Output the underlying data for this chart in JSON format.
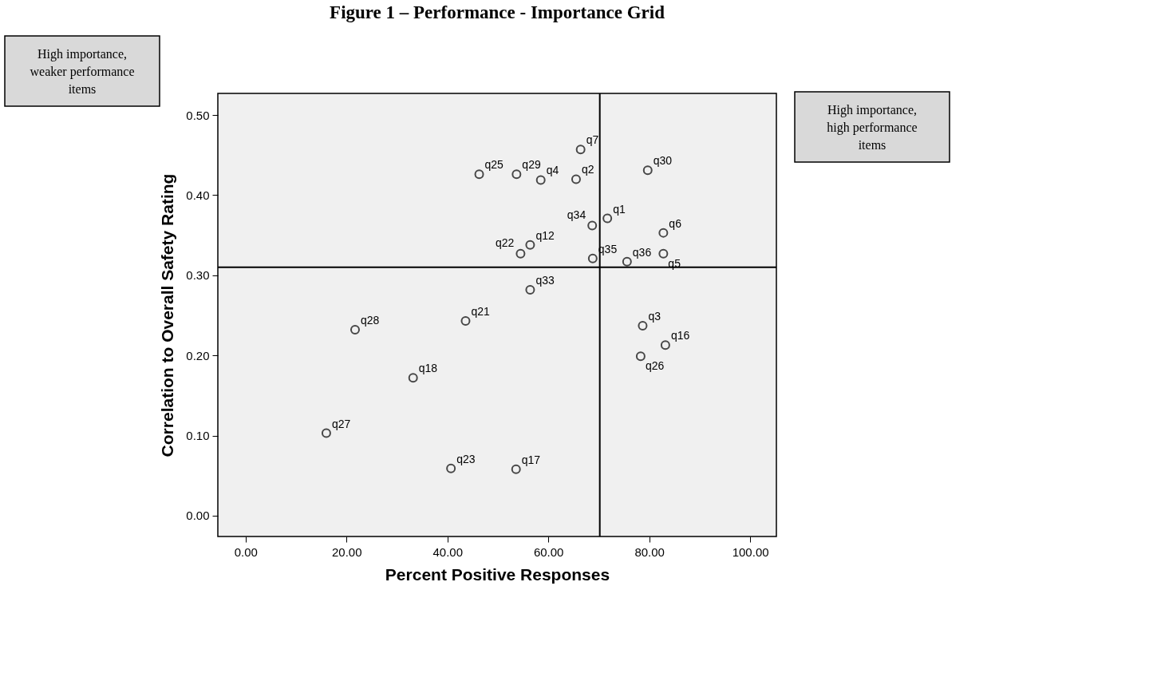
{
  "chart_data": {
    "type": "scatter",
    "title": "Figure 1 – Performance - Importance Grid",
    "xlabel": "Percent Positive Responses",
    "ylabel": "Correlation to Overall Safety Rating",
    "x": [
      66.4,
      46.3,
      53.7,
      58.5,
      65.5,
      79.7,
      68.7,
      71.7,
      82.8,
      56.4,
      54.5,
      68.8,
      75.6,
      82.8,
      56.4,
      43.6,
      21.7,
      78.7,
      83.2,
      78.3,
      33.2,
      16.0,
      40.7,
      53.6
    ],
    "series": [
      {
        "color": "#000000",
        "values": [
          0.457,
          0.426,
          0.426,
          0.419,
          0.42,
          0.431,
          0.362,
          0.371,
          0.353,
          0.338,
          0.327,
          0.321,
          0.317,
          0.327,
          0.282,
          0.243,
          0.232,
          0.237,
          0.213,
          0.199,
          0.172,
          0.103,
          0.059,
          0.058
        ]
      }
    ],
    "annotations": [
      {
        "text": "q7",
        "x": 66.4,
        "y": 0.457
      },
      {
        "text": "q25",
        "x": 46.3,
        "y": 0.426
      },
      {
        "text": "q29",
        "x": 53.7,
        "y": 0.426
      },
      {
        "text": "q4",
        "x": 58.5,
        "y": 0.419
      },
      {
        "text": "q2",
        "x": 65.5,
        "y": 0.42
      },
      {
        "text": "q30",
        "x": 79.7,
        "y": 0.431
      },
      {
        "text": "q34",
        "x": 68.7,
        "y": 0.362
      },
      {
        "text": "q1",
        "x": 71.7,
        "y": 0.371
      },
      {
        "text": "q6",
        "x": 82.8,
        "y": 0.353
      },
      {
        "text": "q12",
        "x": 56.4,
        "y": 0.338
      },
      {
        "text": "q22",
        "x": 54.5,
        "y": 0.327
      },
      {
        "text": "q35",
        "x": 68.8,
        "y": 0.321
      },
      {
        "text": "q36",
        "x": 75.6,
        "y": 0.317
      },
      {
        "text": "q5",
        "x": 82.8,
        "y": 0.327
      },
      {
        "text": "q33",
        "x": 56.4,
        "y": 0.282
      },
      {
        "text": "q21",
        "x": 43.6,
        "y": 0.243
      },
      {
        "text": "q28",
        "x": 21.7,
        "y": 0.232
      },
      {
        "text": "q3",
        "x": 78.7,
        "y": 0.237
      },
      {
        "text": "q16",
        "x": 83.2,
        "y": 0.213
      },
      {
        "text": "q26",
        "x": 78.3,
        "y": 0.199
      },
      {
        "text": "q18",
        "x": 33.2,
        "y": 0.172
      },
      {
        "text": "q27",
        "x": 16.0,
        "y": 0.103
      },
      {
        "text": "q23",
        "x": 40.7,
        "y": 0.059
      },
      {
        "text": "q17",
        "x": 53.6,
        "y": 0.058
      },
      "High importance, weaker performance items",
      "High importance, high performance items"
    ],
    "xlim": [
      -5.5,
      105.2
    ],
    "ylim": [
      -0.026,
      0.527
    ],
    "xticks": [
      {
        "value": 0,
        "label": "0.00"
      },
      {
        "value": 20,
        "label": "20.00"
      },
      {
        "value": 40,
        "label": "40.00"
      },
      {
        "value": 60,
        "label": "60.00"
      },
      {
        "value": 80,
        "label": "80.00"
      },
      {
        "value": 100,
        "label": "100.00"
      }
    ],
    "yticks": [
      {
        "value": 0,
        "label": "0.00"
      },
      {
        "value": 0.1,
        "label": "0.10"
      },
      {
        "value": 0.2,
        "label": "0.20"
      },
      {
        "value": 0.3,
        "label": "0.30"
      },
      {
        "value": 0.4,
        "label": "0.40"
      },
      {
        "value": 0.5,
        "label": "0.50"
      }
    ],
    "ref_lines": [
      {
        "axis": "x",
        "value": 70.2,
        "color": "#000000"
      },
      {
        "axis": "y",
        "value": 0.31,
        "color": "#000000"
      }
    ],
    "marker": "circle",
    "grid": false,
    "legend": false
  }
}
